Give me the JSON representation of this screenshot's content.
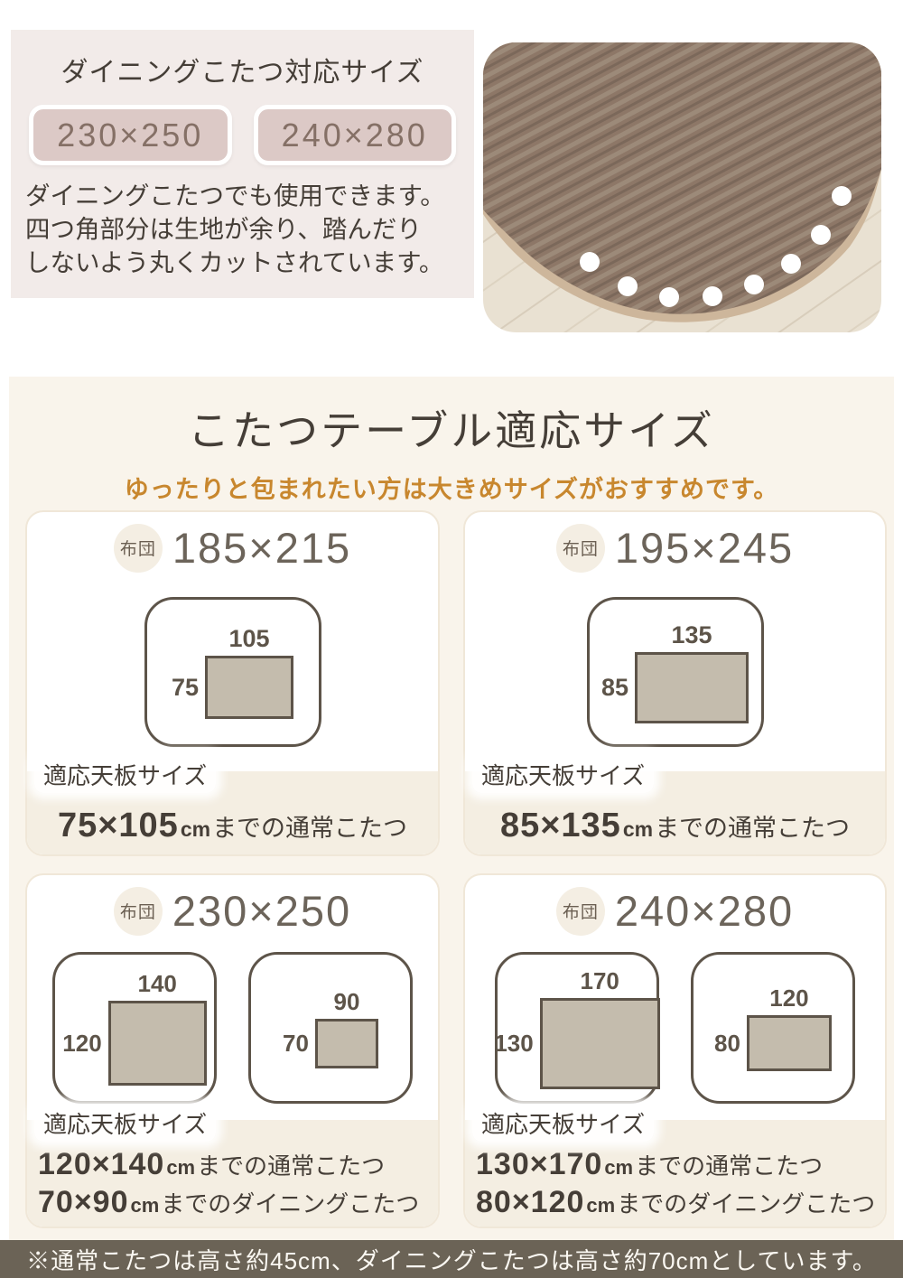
{
  "dining_section": {
    "title": "ダイニングこたつ対応サイズ",
    "badges": [
      "230×250",
      "240×280"
    ],
    "description_lines": [
      "ダイニングこたつでも使用できます。",
      "四つ角部分は生地が余り、踏んだり",
      "しないよう丸くカットされています。"
    ]
  },
  "size_section": {
    "title": "こたつテーブル適応サイズ",
    "subtitle": "ゆったりと包まれたい方は大きめサイズがおすすめです。",
    "futon_badge": "布団",
    "panel_size_label": "適応天板サイズ",
    "cards": [
      {
        "futon_size": "185×215",
        "diagrams": [
          {
            "width_cm": "105",
            "depth_cm": "75"
          }
        ],
        "fits": [
          {
            "size": "75×105",
            "unit": "cm",
            "text": "までの通常こたつ"
          }
        ]
      },
      {
        "futon_size": "195×245",
        "diagrams": [
          {
            "width_cm": "135",
            "depth_cm": "85"
          }
        ],
        "fits": [
          {
            "size": "85×135",
            "unit": "cm",
            "text": "までの通常こたつ"
          }
        ]
      },
      {
        "futon_size": "230×250",
        "diagrams": [
          {
            "width_cm": "140",
            "depth_cm": "120"
          },
          {
            "width_cm": "90",
            "depth_cm": "70"
          }
        ],
        "fits": [
          {
            "size": "120×140",
            "unit": "cm",
            "text": "までの通常こたつ"
          },
          {
            "size": "70×90",
            "unit": "cm",
            "text": "までのダイニングこたつ"
          }
        ]
      },
      {
        "futon_size": "240×280",
        "diagrams": [
          {
            "width_cm": "170",
            "depth_cm": "130"
          },
          {
            "width_cm": "120",
            "depth_cm": "80"
          }
        ],
        "fits": [
          {
            "size": "130×170",
            "unit": "cm",
            "text": "までの通常こたつ"
          },
          {
            "size": "80×120",
            "unit": "cm",
            "text": "までのダイニングこたつ"
          }
        ]
      }
    ],
    "footnote": "※通常こたつは高さ約45cm、ダイニングこたつは高さ約70cmとしています。"
  },
  "colors": {
    "panel_pink": "#f2ebe9",
    "badge_pink": "#dcc9c6",
    "cream": "#f9f4eb",
    "strip_beige": "#f4eee2",
    "tabletop_fill": "#c4bcad",
    "line_brown": "#5d5449",
    "accent_orange": "#c8872e",
    "footer_brown": "#6b6356",
    "text_dark": "#453e37"
  }
}
